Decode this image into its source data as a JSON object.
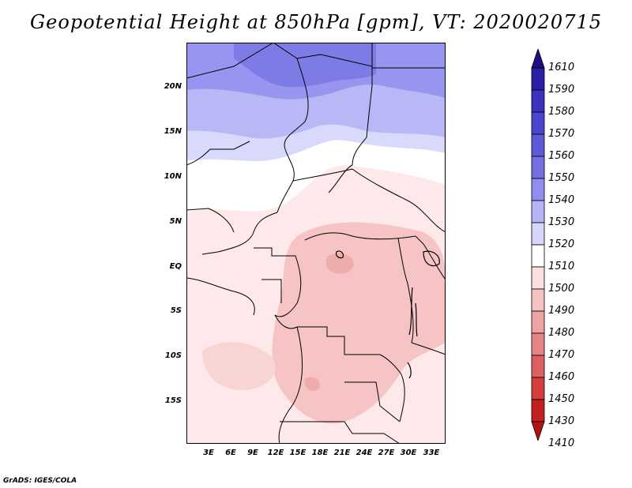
{
  "title": "Geopotential Height at 850hPa [gpm], VT: 2020020715",
  "credit": "GrADS: IGES/COLA",
  "map": {
    "y_ticks": [
      "20N",
      "15N",
      "10N",
      "5N",
      "EQ",
      "5S",
      "10S",
      "15S"
    ],
    "x_ticks": [
      "3E",
      "6E",
      "9E",
      "12E",
      "15E",
      "18E",
      "21E",
      "24E",
      "27E",
      "30E",
      "33E"
    ]
  },
  "colorbar": {
    "labels": [
      "1610",
      "1590",
      "1580",
      "1570",
      "1560",
      "1550",
      "1540",
      "1530",
      "1520",
      "1510",
      "1500",
      "1490",
      "1480",
      "1470",
      "1460",
      "1450",
      "1430",
      "1410"
    ],
    "colors": [
      "#1e1080",
      "#2a1fa6",
      "#3b33c0",
      "#4b46cf",
      "#5d5ad9",
      "#7270e2",
      "#8f8def",
      "#b4b3f6",
      "#d6d6fb",
      "#ffffff",
      "#fbe0e0",
      "#f6c2c2",
      "#eea3a3",
      "#e58484",
      "#dc6060",
      "#d43e3e",
      "#c42020",
      "#b01414"
    ]
  }
}
